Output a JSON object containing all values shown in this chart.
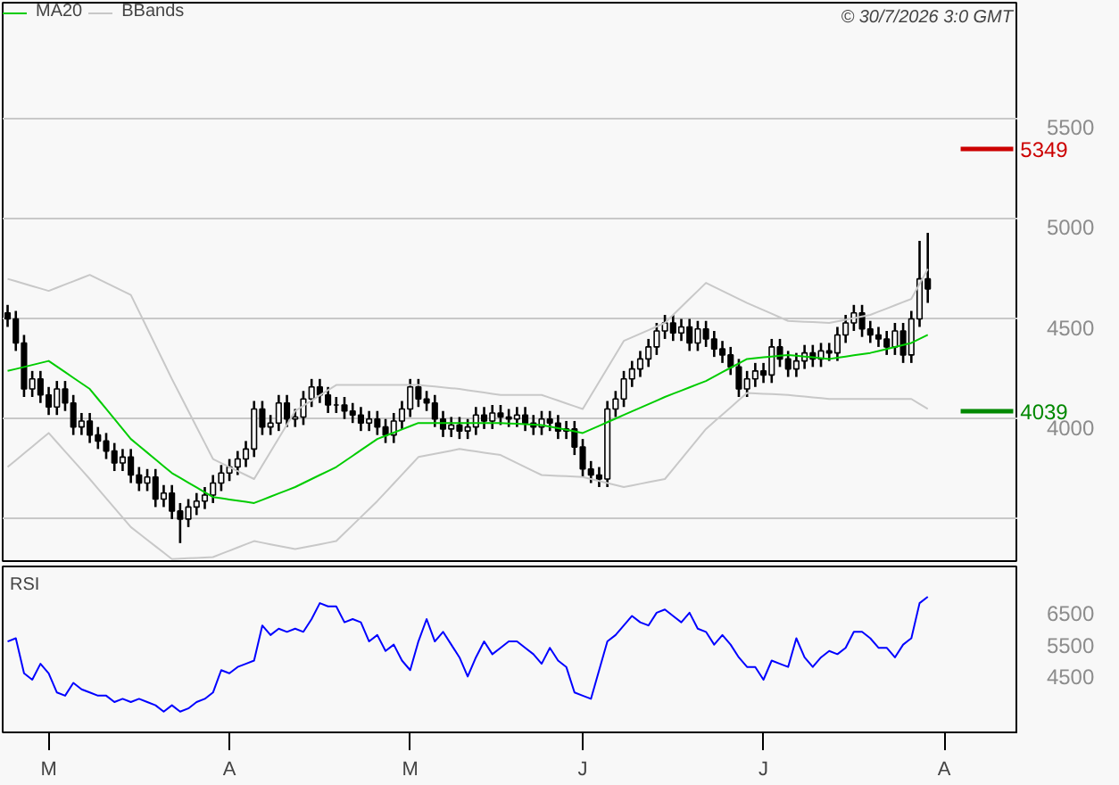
{
  "chart_data": [
    {
      "type": "candlestick",
      "annotations": [
        "© 30/7/2026 3:0 GMT"
      ],
      "legend": "top left",
      "grid": "y",
      "tick_labels": "y",
      "categories": [
        null,
        null,
        null,
        null,
        null,
        null,
        null,
        null,
        null,
        null,
        null,
        null,
        null,
        null,
        null,
        null,
        null,
        null,
        null,
        null,
        null,
        null,
        null,
        null,
        null,
        null,
        null,
        null,
        null,
        null,
        null,
        null,
        null,
        null,
        null,
        null,
        null,
        null,
        null,
        null,
        null,
        null,
        null,
        null,
        null,
        null,
        null,
        null,
        null,
        null,
        null,
        null,
        null,
        null,
        null,
        null,
        null,
        null,
        null,
        null,
        null,
        null,
        null,
        null,
        null,
        null,
        null,
        null,
        null,
        null,
        null,
        null,
        null,
        null,
        null,
        null,
        null,
        null,
        null,
        null,
        null,
        null,
        null,
        null,
        null,
        null,
        null,
        null,
        null,
        null,
        null,
        null,
        null,
        null,
        null,
        null,
        null,
        null,
        null,
        null,
        null,
        null,
        null,
        null,
        null,
        null,
        null,
        null,
        null,
        null,
        null,
        null,
        null,
        null,
        null,
        null
      ],
      "ylim": [
        3290,
        6080
      ],
      "yticks": [
        {
          "value": 3500,
          "label": null
        },
        4000,
        4500,
        5000,
        5500
      ],
      "ref_lines": [
        {
          "axis": "y",
          "value": 5349,
          "label": "5349",
          "color": "#cc0000"
        },
        {
          "axis": "y",
          "value": 4039,
          "label": "4039",
          "color": "#008800"
        }
      ],
      "series": [
        {
          "type": "candlestick",
          "color": "#000000",
          "ohlc": [
            [
              4530,
              4570,
              4460,
              4500
            ],
            [
              4500,
              4540,
              4340,
              4380
            ],
            [
              4380,
              4420,
              4110,
              4150
            ],
            [
              4150,
              4240,
              4110,
              4200
            ],
            [
              4200,
              4240,
              4080,
              4120
            ],
            [
              4120,
              4160,
              4020,
              4060
            ],
            [
              4060,
              4190,
              4020,
              4150
            ],
            [
              4150,
              4190,
              4040,
              4080
            ],
            [
              4080,
              4120,
              3920,
              3960
            ],
            [
              3960,
              4030,
              3920,
              3990
            ],
            [
              3990,
              4030,
              3880,
              3920
            ],
            [
              3920,
              3960,
              3850,
              3890
            ],
            [
              3890,
              3930,
              3800,
              3840
            ],
            [
              3840,
              3880,
              3740,
              3780
            ],
            [
              3780,
              3850,
              3740,
              3810
            ],
            [
              3810,
              3850,
              3680,
              3720
            ],
            [
              3720,
              3760,
              3640,
              3680
            ],
            [
              3680,
              3750,
              3640,
              3710
            ],
            [
              3710,
              3750,
              3560,
              3600
            ],
            [
              3600,
              3670,
              3560,
              3630
            ],
            [
              3630,
              3670,
              3500,
              3540
            ],
            [
              3540,
              3580,
              3380,
              3500
            ],
            [
              3500,
              3600,
              3460,
              3560
            ],
            [
              3560,
              3630,
              3520,
              3590
            ],
            [
              3590,
              3660,
              3550,
              3620
            ],
            [
              3620,
              3720,
              3580,
              3680
            ],
            [
              3680,
              3770,
              3640,
              3730
            ],
            [
              3730,
              3800,
              3690,
              3760
            ],
            [
              3760,
              3840,
              3720,
              3800
            ],
            [
              3800,
              3890,
              3760,
              3850
            ],
            [
              3850,
              4090,
              3810,
              4050
            ],
            [
              4050,
              4090,
              3920,
              3960
            ],
            [
              3960,
              4020,
              3920,
              3980
            ],
            [
              3980,
              4120,
              3940,
              4080
            ],
            [
              4080,
              4120,
              3960,
              4000
            ],
            [
              4000,
              4050,
              3960,
              4010
            ],
            [
              4010,
              4140,
              3970,
              4100
            ],
            [
              4100,
              4200,
              4060,
              4160
            ],
            [
              4160,
              4200,
              4080,
              4120
            ],
            [
              4120,
              4160,
              4030,
              4070
            ],
            [
              4070,
              4110,
              4030,
              4070
            ],
            [
              4070,
              4110,
              4000,
              4040
            ],
            [
              4040,
              4080,
              3980,
              4020
            ],
            [
              4020,
              4060,
              3940,
              3980
            ],
            [
              3980,
              4040,
              3940,
              4000
            ],
            [
              4000,
              4040,
              3920,
              3960
            ],
            [
              3960,
              4000,
              3880,
              3920
            ],
            [
              3920,
              4030,
              3880,
              3990
            ],
            [
              3990,
              4090,
              3950,
              4050
            ],
            [
              4050,
              4200,
              4010,
              4160
            ],
            [
              4160,
              4200,
              4060,
              4100
            ],
            [
              4100,
              4140,
              4040,
              4080
            ],
            [
              4080,
              4120,
              3960,
              4000
            ],
            [
              4000,
              4040,
              3910,
              3950
            ],
            [
              3950,
              4010,
              3910,
              3970
            ],
            [
              3970,
              4010,
              3900,
              3940
            ],
            [
              3940,
              4000,
              3900,
              3960
            ],
            [
              3960,
              4060,
              3920,
              4020
            ],
            [
              4020,
              4060,
              3950,
              3990
            ],
            [
              3990,
              4070,
              3950,
              4030
            ],
            [
              4030,
              4070,
              3970,
              4010
            ],
            [
              4010,
              4050,
              3960,
              4000
            ],
            [
              4000,
              4060,
              3960,
              4020
            ],
            [
              4020,
              4060,
              3940,
              3980
            ],
            [
              3980,
              4020,
              3920,
              3960
            ],
            [
              3960,
              4040,
              3920,
              4000
            ],
            [
              4000,
              4040,
              3940,
              3980
            ],
            [
              3980,
              4020,
              3900,
              3940
            ],
            [
              3940,
              3990,
              3900,
              3950
            ],
            [
              3950,
              3990,
              3820,
              3860
            ],
            [
              3860,
              3900,
              3710,
              3750
            ],
            [
              3750,
              3790,
              3680,
              3720
            ],
            [
              3720,
              3760,
              3660,
              3700
            ],
            [
              3700,
              4090,
              3660,
              4050
            ],
            [
              4050,
              4140,
              4010,
              4100
            ],
            [
              4100,
              4240,
              4060,
              4200
            ],
            [
              4200,
              4290,
              4160,
              4250
            ],
            [
              4250,
              4340,
              4210,
              4300
            ],
            [
              4300,
              4400,
              4260,
              4360
            ],
            [
              4360,
              4480,
              4320,
              4440
            ],
            [
              4440,
              4520,
              4400,
              4480
            ],
            [
              4480,
              4520,
              4390,
              4430
            ],
            [
              4430,
              4500,
              4390,
              4460
            ],
            [
              4460,
              4500,
              4340,
              4380
            ],
            [
              4380,
              4490,
              4340,
              4450
            ],
            [
              4450,
              4490,
              4360,
              4400
            ],
            [
              4400,
              4440,
              4310,
              4350
            ],
            [
              4350,
              4390,
              4280,
              4320
            ],
            [
              4320,
              4360,
              4220,
              4260
            ],
            [
              4260,
              4300,
              4110,
              4150
            ],
            [
              4150,
              4240,
              4110,
              4200
            ],
            [
              4200,
              4280,
              4160,
              4240
            ],
            [
              4240,
              4280,
              4180,
              4220
            ],
            [
              4220,
              4400,
              4180,
              4360
            ],
            [
              4360,
              4400,
              4260,
              4300
            ],
            [
              4300,
              4340,
              4210,
              4250
            ],
            [
              4250,
              4330,
              4210,
              4290
            ],
            [
              4290,
              4370,
              4250,
              4330
            ],
            [
              4330,
              4370,
              4260,
              4300
            ],
            [
              4300,
              4380,
              4260,
              4340
            ],
            [
              4340,
              4380,
              4290,
              4330
            ],
            [
              4330,
              4460,
              4290,
              4420
            ],
            [
              4420,
              4520,
              4380,
              4480
            ],
            [
              4480,
              4570,
              4440,
              4530
            ],
            [
              4530,
              4570,
              4410,
              4450
            ],
            [
              4450,
              4490,
              4380,
              4420
            ],
            [
              4420,
              4460,
              4360,
              4400
            ],
            [
              4400,
              4440,
              4320,
              4360
            ],
            [
              4360,
              4480,
              4320,
              4440
            ],
            [
              4440,
              4480,
              4280,
              4320
            ],
            [
              4320,
              4540,
              4280,
              4500
            ],
            [
              4500,
              4890,
              4460,
              4700
            ],
            [
              4700,
              4930,
              4580,
              4650
            ],
            null,
            null,
            null
          ]
        },
        {
          "type": "line",
          "name": "MA20",
          "color": "#00cc00",
          "values": [
            4240,
            4250,
            4260,
            4270,
            4280,
            4290,
            4262,
            4234,
            4206,
            4178,
            4150,
            4100,
            4050,
            4000,
            3950,
            3900,
            3866,
            3832,
            3798,
            3764,
            3730,
            3706,
            3682,
            3658,
            3634,
            3610,
            3604,
            3598,
            3592,
            3586,
            3580,
            3596,
            3612,
            3628,
            3644,
            3660,
            3680,
            3700,
            3720,
            3740,
            3760,
            3788,
            3816,
            3844,
            3872,
            3900,
            3916,
            3932,
            3948,
            3964,
            3980,
            3980,
            3980,
            3980,
            3980,
            3980,
            3980,
            3980,
            3980,
            3980,
            3980,
            3978,
            3976,
            3974,
            3972,
            3970,
            3962,
            3954,
            3946,
            3938,
            3930,
            3948,
            3966,
            3984,
            4002,
            4020,
            4038,
            4056,
            4074,
            4092,
            4110,
            4126,
            4142,
            4158,
            4174,
            4190,
            4212,
            4234,
            4256,
            4278,
            4300,
            4304,
            4308,
            4312,
            4316,
            4320,
            4316,
            4312,
            4308,
            4304,
            4300,
            4306,
            4312,
            4318,
            4324,
            4330,
            4340,
            4350,
            4360,
            4370,
            4380,
            4400,
            4420,
            null,
            null,
            null
          ]
        },
        {
          "type": "line",
          "name": "BBands",
          "color": "#c8c8c8",
          "values": [
            4700,
            4688,
            4676,
            4664,
            4652,
            4640,
            4656,
            4672,
            4688,
            4704,
            4720,
            4700,
            4680,
            4660,
            4640,
            4620,
            4536,
            4452,
            4368,
            4284,
            4200,
            4120,
            4040,
            3960,
            3880,
            3800,
            3780,
            3760,
            3740,
            3720,
            3700,
            3768,
            3836,
            3904,
            3972,
            4040,
            4066,
            4092,
            4118,
            4144,
            4170,
            4170,
            4170,
            4170,
            4170,
            4170,
            4170,
            4170,
            4170,
            4170,
            4170,
            4166,
            4162,
            4158,
            4154,
            4150,
            4144,
            4138,
            4132,
            4126,
            4120,
            4120,
            4120,
            4120,
            4120,
            4120,
            4106,
            4092,
            4078,
            4064,
            4050,
            4118,
            4186,
            4254,
            4322,
            4390,
            4408,
            4426,
            4444,
            4462,
            4480,
            4520,
            4560,
            4600,
            4640,
            4680,
            4660,
            4640,
            4620,
            4600,
            4580,
            4562,
            4544,
            4526,
            4508,
            4490,
            4488,
            4486,
            4484,
            4482,
            4480,
            4488,
            4496,
            4504,
            4512,
            4520,
            4536,
            4552,
            4568,
            4584,
            4600,
            4675,
            4750,
            null,
            null,
            null
          ]
        },
        {
          "type": "line",
          "color": "#c8c8c8",
          "values": [
            3760,
            3794,
            3828,
            3862,
            3896,
            3930,
            3884,
            3838,
            3792,
            3746,
            3700,
            3652,
            3604,
            3556,
            3508,
            3460,
            3428,
            3396,
            3364,
            3332,
            3300,
            3302,
            3304,
            3306,
            3308,
            3310,
            3326,
            3342,
            3358,
            3374,
            3390,
            3382,
            3374,
            3366,
            3358,
            3350,
            3358,
            3366,
            3374,
            3382,
            3390,
            3430,
            3470,
            3510,
            3550,
            3590,
            3634,
            3678,
            3722,
            3766,
            3810,
            3818,
            3826,
            3834,
            3842,
            3850,
            3844,
            3838,
            3832,
            3826,
            3820,
            3800,
            3780,
            3760,
            3740,
            3720,
            3718,
            3716,
            3714,
            3712,
            3710,
            3700,
            3690,
            3680,
            3670,
            3660,
            3668,
            3676,
            3684,
            3692,
            3700,
            3750,
            3800,
            3850,
            3900,
            3950,
            3986,
            4022,
            4058,
            4094,
            4130,
            4128,
            4126,
            4124,
            4122,
            4120,
            4116,
            4112,
            4108,
            4104,
            4100,
            4100,
            4100,
            4100,
            4100,
            4100,
            4100,
            4100,
            4100,
            4100,
            4100,
            4075,
            4050,
            null,
            null,
            null
          ]
        }
      ]
    },
    {
      "type": "line",
      "title": "RSI",
      "categories": [
        null,
        null,
        null,
        null,
        null,
        "M",
        null,
        null,
        null,
        null,
        null,
        null,
        null,
        null,
        null,
        null,
        null,
        null,
        null,
        null,
        null,
        null,
        null,
        null,
        null,
        null,
        null,
        "A",
        null,
        null,
        null,
        null,
        null,
        null,
        null,
        null,
        null,
        null,
        null,
        null,
        null,
        null,
        null,
        null,
        null,
        null,
        null,
        null,
        null,
        "M",
        null,
        null,
        null,
        null,
        null,
        null,
        null,
        null,
        null,
        null,
        null,
        null,
        null,
        null,
        null,
        null,
        null,
        null,
        null,
        null,
        "J",
        null,
        null,
        null,
        null,
        null,
        null,
        null,
        null,
        null,
        null,
        null,
        null,
        null,
        null,
        null,
        null,
        null,
        null,
        null,
        null,
        null,
        "J",
        null,
        null,
        null,
        null,
        null,
        null,
        null,
        null,
        null,
        null,
        null,
        null,
        null,
        null,
        null,
        null,
        null,
        null,
        null,
        null,
        null,
        "A",
        null
      ],
      "ylim": [
        2750,
        7950
      ],
      "yticks": [
        4500,
        5500,
        6500
      ],
      "series": [
        {
          "color": "#0000ff",
          "values": [
            5600,
            5700,
            4600,
            4400,
            4900,
            4600,
            4000,
            3900,
            4300,
            4100,
            4000,
            3900,
            3900,
            3700,
            3800,
            3700,
            3800,
            3700,
            3600,
            3400,
            3600,
            3400,
            3500,
            3700,
            3800,
            4000,
            4700,
            4600,
            4800,
            4900,
            5000,
            6100,
            5800,
            6000,
            5900,
            6000,
            5900,
            6300,
            6800,
            6700,
            6700,
            6200,
            6300,
            6200,
            5600,
            5800,
            5300,
            5500,
            5000,
            4700,
            5600,
            6300,
            5600,
            5900,
            5500,
            5100,
            4500,
            5100,
            5600,
            5200,
            5400,
            5600,
            5600,
            5400,
            5200,
            4900,
            5400,
            5000,
            4800,
            4000,
            3900,
            3800,
            4700,
            5600,
            5800,
            6100,
            6400,
            6200,
            6100,
            6500,
            6600,
            6400,
            6200,
            6500,
            6000,
            5900,
            5500,
            5800,
            5500,
            5100,
            4800,
            4800,
            4400,
            5000,
            4900,
            4800,
            5700,
            5100,
            4800,
            5100,
            5300,
            5200,
            5400,
            5900,
            5900,
            5700,
            5400,
            5400,
            5100,
            5500,
            5700,
            6800,
            7000,
            null,
            null,
            null
          ]
        }
      ]
    }
  ]
}
